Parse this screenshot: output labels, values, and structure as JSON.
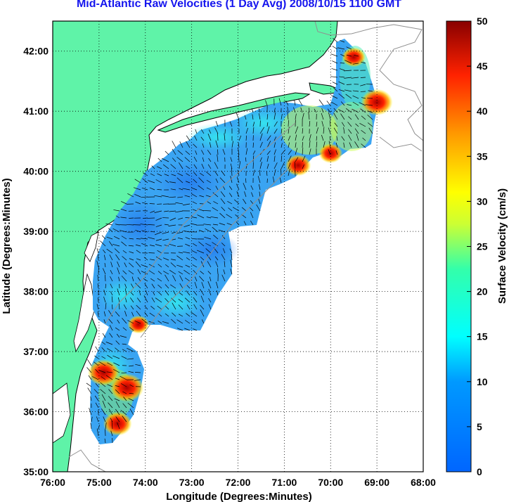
{
  "title": "Mid-Atlantic Raw Velocities (1 Day Avg) 2008/10/15 1100 GMT",
  "axes": {
    "xlabel": "Longitude (Degrees:Minutes)",
    "ylabel": "Latitude (Degrees:Minutes)",
    "x_ticks": [
      "76:00",
      "75:00",
      "74:00",
      "73:00",
      "72:00",
      "71:00",
      "70:00",
      "69:00",
      "68:00"
    ],
    "y_ticks": [
      "42:00",
      "41:00",
      "40:00",
      "39:00",
      "38:00",
      "37:00",
      "36:00",
      "35:00"
    ],
    "x_range": [
      -76,
      -68
    ],
    "y_range": [
      35,
      42.5
    ],
    "grid": "dotted"
  },
  "colorbar": {
    "label": "Surface Velocity (cm/s)",
    "ticks": [
      "0",
      "5",
      "10",
      "15",
      "20",
      "25",
      "30",
      "35",
      "40",
      "45",
      "50"
    ],
    "range": [
      0,
      50
    ],
    "colormap": "jet"
  },
  "colors": {
    "land": "#5ff3a8",
    "coast": "#000000",
    "bathymetry": "#909090",
    "title": "#1515ee",
    "vector": "#000000"
  },
  "chart_data": {
    "type": "heatmap",
    "field": "surface current velocity (cm/s)",
    "vmin": 0,
    "vmax": 50,
    "hotspots": [
      {
        "lon": -74.9,
        "lat": 36.65,
        "speed": 48
      },
      {
        "lon": -74.4,
        "lat": 36.4,
        "speed": 50
      },
      {
        "lon": -74.6,
        "lat": 35.8,
        "speed": 45
      },
      {
        "lon": -70.7,
        "lat": 40.1,
        "speed": 42
      },
      {
        "lon": -70.0,
        "lat": 40.3,
        "speed": 40
      },
      {
        "lon": -69.0,
        "lat": 41.15,
        "speed": 48
      },
      {
        "lon": -69.5,
        "lat": 41.9,
        "speed": 40
      },
      {
        "lon": -74.15,
        "lat": 37.45,
        "speed": 38
      }
    ]
  }
}
